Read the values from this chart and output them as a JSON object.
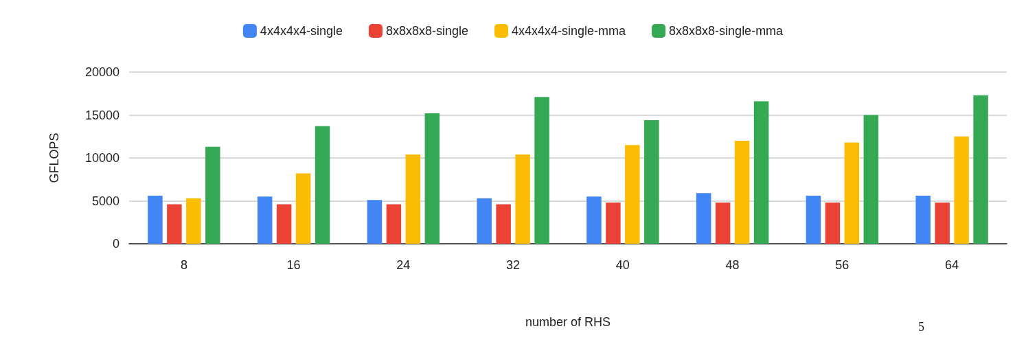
{
  "chart_data": {
    "type": "bar",
    "xlabel": "number of RHS",
    "ylabel": "GFLOPS",
    "categories": [
      "8",
      "16",
      "24",
      "32",
      "40",
      "48",
      "56",
      "64"
    ],
    "series": [
      {
        "name": "4x4x4x4-single",
        "color": "#4285f4",
        "values": [
          5600,
          5500,
          5100,
          5300,
          5500,
          5900,
          5600,
          5600
        ]
      },
      {
        "name": "8x8x8x8-single",
        "color": "#ea4335",
        "values": [
          4600,
          4600,
          4600,
          4600,
          4800,
          4800,
          4800,
          4800
        ]
      },
      {
        "name": "4x4x4x4-single-mma",
        "color": "#fbbc04",
        "values": [
          5300,
          8200,
          10400,
          10400,
          11500,
          12000,
          11800,
          12500
        ]
      },
      {
        "name": "8x8x8x8-single-mma",
        "color": "#34a853",
        "values": [
          11300,
          13700,
          15200,
          17100,
          14400,
          16600,
          15000,
          17300
        ]
      }
    ],
    "ylim": [
      0,
      20000
    ],
    "yticks": [
      0,
      5000,
      10000,
      15000,
      20000
    ],
    "grid": "y",
    "legend": "top",
    "annotations": [
      "5"
    ]
  }
}
